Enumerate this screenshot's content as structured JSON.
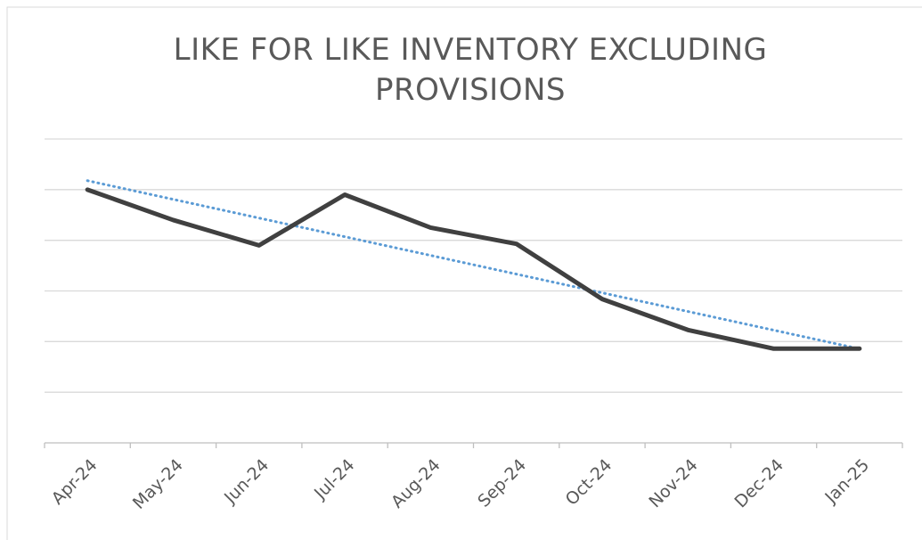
{
  "chart_data": {
    "type": "line",
    "title": "LIKE FOR LIKE INVENTORY EXCLUDING PROVISIONS",
    "categories": [
      "Apr-24",
      "May-24",
      "Jun-24",
      "Jul-24",
      "Aug-24",
      "Sep-24",
      "Oct-24",
      "Nov-24",
      "Dec-24",
      "Jan-25"
    ],
    "series": [
      {
        "color": "#404040",
        "values": [
          5.0,
          4.4,
          3.9,
          4.9,
          4.25,
          3.93,
          2.84,
          2.23,
          1.86,
          1.86
        ]
      }
    ],
    "trendline": true,
    "trendline_color": "#5b9bd5",
    "ylim": [
      0,
      6
    ],
    "yticks": [
      0,
      1,
      2,
      3,
      4,
      5,
      6
    ],
    "grid": true
  }
}
